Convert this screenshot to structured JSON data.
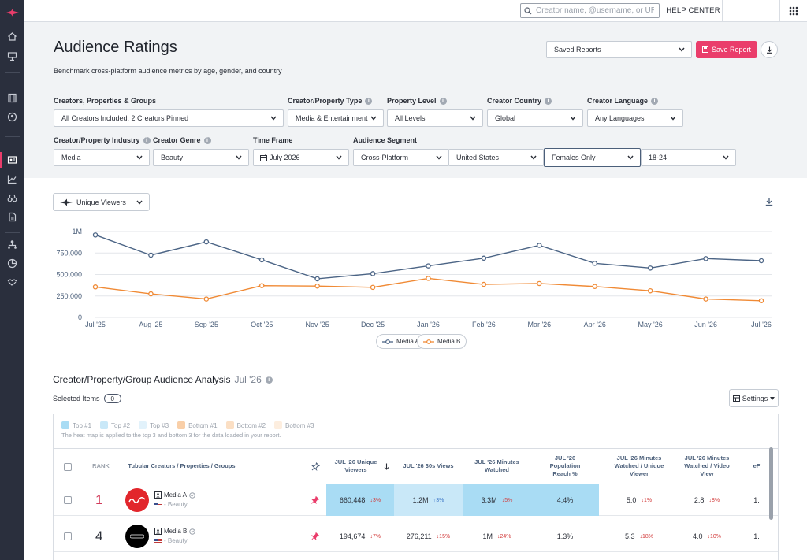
{
  "topbar": {
    "search_placeholder": "Creator name, @username, or URL",
    "help_label": "HELP CENTER"
  },
  "header": {
    "title": "Audience Ratings",
    "subtitle": "Benchmark cross-platform audience metrics by age, gender, and country",
    "saved_reports_label": "Saved Reports",
    "save_report_label": "Save Report"
  },
  "filters": {
    "creators_label": "Creators, Properties & Groups",
    "creators_value": "All Creators Included; 2 Creators Pinned",
    "type_label": "Creator/Property Type",
    "type_value": "Media & Entertainment",
    "level_label": "Property Level",
    "level_value": "All Levels",
    "country_label": "Creator Country",
    "country_value": "Global",
    "language_label": "Creator Language",
    "language_value": "Any Languages",
    "industry_label": "Creator/Property Industry",
    "industry_value": "Media",
    "genre_label": "Creator Genre",
    "genre_value": "Beauty",
    "timeframe_label": "Time Frame",
    "timeframe_value": "July 2026",
    "segment_label": "Audience Segment",
    "segment_platform": "Cross-Platform",
    "segment_country": "United States",
    "segment_gender": "Females Only",
    "segment_age": "18-24"
  },
  "metric_select": {
    "label": "Unique Viewers"
  },
  "colors": {
    "media_a": "#4b6485",
    "media_b": "#f08a35",
    "accent": "#ea3d6b"
  },
  "chart_data": {
    "type": "line",
    "x": [
      "Jul '25",
      "Aug '25",
      "Sep '25",
      "Oct '25",
      "Nov '25",
      "Dec '25",
      "Jan '26",
      "Feb '26",
      "Mar '26",
      "Apr '26",
      "May '26",
      "Jun '26",
      "Jul '26"
    ],
    "series": [
      {
        "name": "Media A",
        "values": [
          960000,
          725000,
          880000,
          670000,
          450000,
          510000,
          600000,
          690000,
          840000,
          630000,
          575000,
          685000,
          660448
        ]
      },
      {
        "name": "Media B",
        "values": [
          355000,
          275000,
          215000,
          370000,
          365000,
          350000,
          455000,
          385000,
          395000,
          360000,
          310000,
          215000,
          194674
        ]
      }
    ],
    "yticks": [
      "0",
      "250,000",
      "500,000",
      "750,000",
      "1M"
    ],
    "ytick_values": [
      0,
      250000,
      500000,
      750000,
      1000000
    ],
    "ylim": [
      0,
      1000000
    ],
    "grid": true,
    "legend": "bottom-center"
  },
  "analysis": {
    "title": "Creator/Property/Group Audience Analysis",
    "month": "Jul '26",
    "selected_label": "Selected Items",
    "selected_count": "0",
    "settings_label": "Settings",
    "heat_legend": [
      "Top #1",
      "Top #2",
      "Top #3",
      "Bottom #1",
      "Bottom #2",
      "Bottom #3"
    ],
    "heat_note": "The heat map is applied to the top 3 and bottom 3 for the data loaded in your report."
  },
  "table": {
    "headers": {
      "rank": "RANK",
      "name": "Tubular Creators / Properties / Groups",
      "unique_viewers": "JUL '26 Unique Viewers",
      "views_30s": "JUL '26 30s Views",
      "minutes": "JUL '26 Minutes Watched",
      "reach": "JUL '26 Population Reach %",
      "min_per_viewer": "JUL '26 Minutes Watched / Unique Viewer",
      "min_per_view": "JUL '26 Minutes Watched / Video View",
      "cut": "eF"
    },
    "rows": [
      {
        "rank": "1",
        "name": "Media A",
        "genre": "- Beauty",
        "unique_viewers": "660,448",
        "unique_viewers_chg": "3%",
        "views_30s": "1.2M",
        "views_30s_chg": "3%",
        "minutes": "3.3M",
        "minutes_chg": "5%",
        "reach": "4.4%",
        "min_per_viewer": "5.0",
        "min_per_viewer_chg": "1%",
        "min_per_view": "2.8",
        "min_per_view_chg": "8%",
        "cut": "1."
      },
      {
        "rank": "4",
        "name": "Media B",
        "genre": "- Beauty",
        "unique_viewers": "194,674",
        "unique_viewers_chg": "7%",
        "views_30s": "276,211",
        "views_30s_chg": "15%",
        "minutes": "1M",
        "minutes_chg": "24%",
        "reach": "1.3%",
        "min_per_viewer": "5.3",
        "min_per_viewer_chg": "18%",
        "min_per_view": "4.0",
        "min_per_view_chg": "10%",
        "cut": "1."
      }
    ]
  }
}
